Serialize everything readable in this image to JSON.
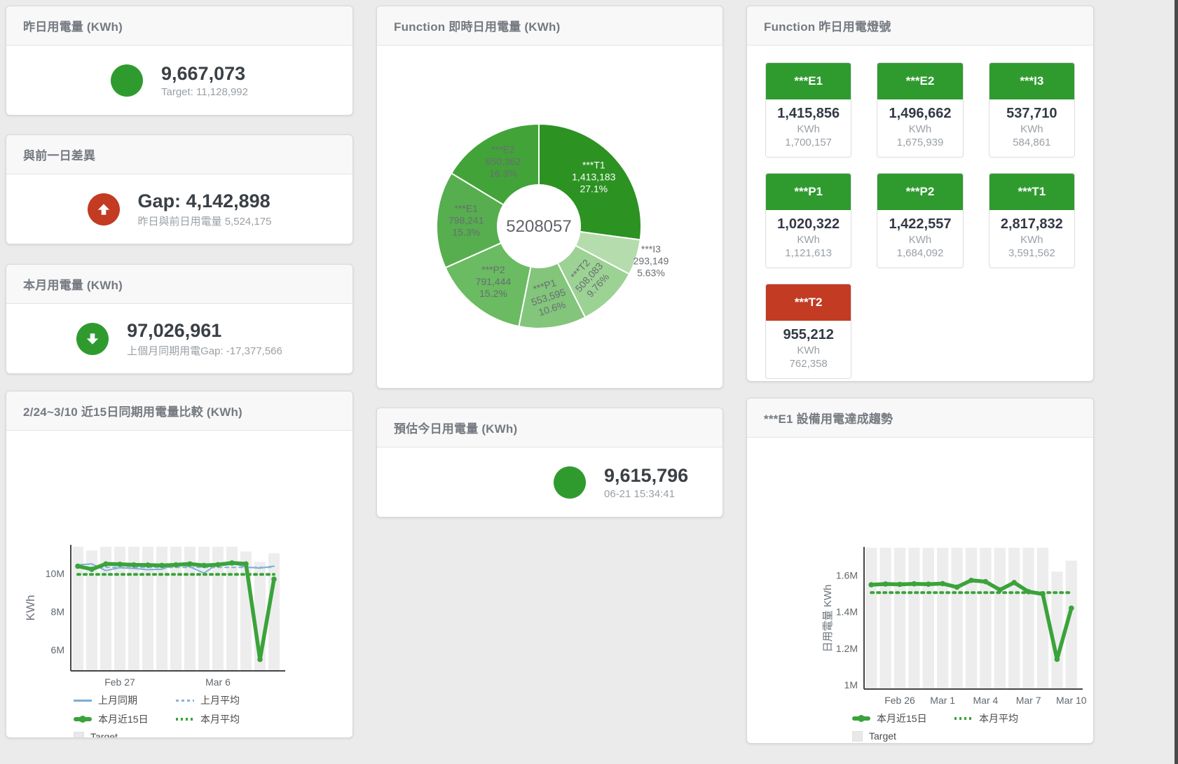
{
  "window": {
    "background": "#ebebeb"
  },
  "colors": {
    "green": "#2f9b2f",
    "red": "#c23b22",
    "blue_line": "#7badd4",
    "blue_dash": "#84b4da",
    "green_line": "#3aa33a",
    "bar_gray": "#ededed",
    "header_bg": "#f8f8f8"
  },
  "cards": {
    "yesterday": {
      "title": "昨日用電量 (KWh)",
      "value": "9,667,073",
      "subtitle": "Target: 11,128,992",
      "indicator": "circle",
      "indicator_color": "#2f9b2f"
    },
    "gap": {
      "title": "與前一日差異",
      "value": "Gap: 4,142,898",
      "subtitle": "昨日與前日用電量 5,524,175",
      "indicator": "arrow-up",
      "indicator_color": "#c23b22"
    },
    "month": {
      "title": "本月用電量 (KWh)",
      "value": "97,026,961",
      "subtitle": "上個月同期用電Gap: -17,377,566",
      "indicator": "arrow-down",
      "indicator_color": "#2f9b2f"
    },
    "estimate": {
      "title": "預估今日用電量 (KWh)",
      "value": "9,615,796",
      "subtitle": "06-21 15:34:41",
      "indicator": "circle",
      "indicator_color": "#2f9b2f"
    },
    "realtime": {
      "title": "Function 即時日用電量 (KWh)"
    },
    "lights": {
      "title": "Function 昨日用電燈號",
      "unit": "KWh",
      "tiles": [
        {
          "name": "***E1",
          "value": "1,415,856",
          "target": "1,700,157",
          "status": "green"
        },
        {
          "name": "***E2",
          "value": "1,496,662",
          "target": "1,675,939",
          "status": "green"
        },
        {
          "name": "***I3",
          "value": "537,710",
          "target": "584,861",
          "status": "green"
        },
        {
          "name": "***P1",
          "value": "1,020,322",
          "target": "1,121,613",
          "status": "green"
        },
        {
          "name": "***P2",
          "value": "1,422,557",
          "target": "1,684,092",
          "status": "green"
        },
        {
          "name": "***T1",
          "value": "2,817,832",
          "target": "3,591,562",
          "status": "green"
        },
        {
          "name": "***T2",
          "value": "955,212",
          "target": "762,358",
          "status": "red"
        }
      ]
    },
    "compare": {
      "title": "2/24~3/10 近15日同期用電量比較 (KWh)"
    },
    "trend": {
      "title": "***E1 設備用電達成趨勢"
    }
  },
  "chart_data": [
    {
      "id": "realtime-donut",
      "type": "pie",
      "title": "Function 即時日用電量 (KWh)",
      "center_total": "5208057",
      "unit": "KWh",
      "slices": [
        {
          "name": "***T1",
          "value": 1413183,
          "pct": "27.1%",
          "color": "#2c9222",
          "label_light": true
        },
        {
          "name": "***I3",
          "value": 293149,
          "pct": "5.63%",
          "color": "#b5dcad",
          "label_outside": true
        },
        {
          "name": "***T2",
          "value": 508083,
          "pct": "9.76%",
          "color": "#9cd294",
          "label_rotate": -48
        },
        {
          "name": "***P1",
          "value": 553595,
          "pct": "10.6%",
          "color": "#83c57b",
          "label_rotate": -18
        },
        {
          "name": "***P2",
          "value": 791444,
          "pct": "15.2%",
          "color": "#6abb62"
        },
        {
          "name": "***E1",
          "value": 798241,
          "pct": "15.3%",
          "color": "#56ae4e"
        },
        {
          "name": "***E2",
          "value": 850362,
          "pct": "16.3%",
          "color": "#42a339"
        }
      ]
    },
    {
      "id": "compare",
      "type": "line",
      "title": "2/24~3/10 近15日同期用電量比較 (KWh)",
      "ylabel": "KWh",
      "unit_scale": "millions KWh",
      "n_points": 15,
      "ylim": [
        4.9,
        11.5
      ],
      "y_ticks": [
        {
          "v": 6,
          "label": "6M"
        },
        {
          "v": 8,
          "label": "8M"
        },
        {
          "v": 10,
          "label": "10M"
        }
      ],
      "x_ticks": [
        {
          "i": 3,
          "label": "Feb 27"
        },
        {
          "i": 10,
          "label": "Mar 6"
        }
      ],
      "grid": false,
      "legend_position": "bottom",
      "series": [
        {
          "name": "Target",
          "type": "bar",
          "color": "#ededed",
          "values": [
            11.4,
            11.2,
            11.4,
            11.4,
            11.4,
            11.4,
            11.4,
            11.4,
            11.4,
            11.4,
            11.4,
            11.4,
            11.15,
            10.6,
            11.05
          ]
        },
        {
          "name": "上月同期",
          "type": "line",
          "color": "#7badd4",
          "width": 2,
          "values": [
            10.45,
            10.5,
            10.15,
            10.3,
            10.26,
            10.2,
            10.22,
            10.5,
            10.35,
            10.02,
            10.5,
            10.55,
            10.33,
            10.28,
            10.38
          ]
        },
        {
          "name": "上月平均",
          "type": "line",
          "color": "#84b4da",
          "width": 2,
          "dash": "5 5",
          "constant": 10.32
        },
        {
          "name": "本月近15日",
          "type": "line",
          "color": "#3aa33a",
          "width": 5.5,
          "marker": true,
          "values": [
            10.38,
            10.22,
            10.5,
            10.48,
            10.45,
            10.44,
            10.42,
            10.45,
            10.5,
            10.42,
            10.46,
            10.55,
            10.5,
            5.5,
            9.7
          ]
        },
        {
          "name": "本月平均",
          "type": "line",
          "color": "#3aa33a",
          "width": 4,
          "dash": "3 6",
          "constant": 9.95
        }
      ],
      "legend": [
        "上月同期",
        "上月平均",
        "本月近15日",
        "本月平均",
        "Target"
      ]
    },
    {
      "id": "trend",
      "type": "line",
      "title": "***E1 設備用電達成趨勢",
      "ylabel": "日用電量 KWh",
      "unit_scale": "millions KWh",
      "n_points": 15,
      "ylim": [
        0.977,
        1.755
      ],
      "y_ticks": [
        {
          "v": 1,
          "label": "1M"
        },
        {
          "v": 1.2,
          "label": "1.2M"
        },
        {
          "v": 1.4,
          "label": "1.4M"
        },
        {
          "v": 1.6,
          "label": "1.6M"
        }
      ],
      "x_ticks": [
        {
          "i": 2,
          "label": "Feb 26"
        },
        {
          "i": 5,
          "label": "Mar 1"
        },
        {
          "i": 8,
          "label": "Mar 4"
        },
        {
          "i": 11,
          "label": "Mar 7"
        },
        {
          "i": 14,
          "label": "Mar 10"
        }
      ],
      "grid": false,
      "legend_position": "bottom",
      "series": [
        {
          "name": "Target",
          "type": "bar",
          "color": "#ededed",
          "values": [
            1.75,
            1.75,
            1.75,
            1.75,
            1.75,
            1.75,
            1.75,
            1.75,
            1.75,
            1.75,
            1.75,
            1.75,
            1.75,
            1.62,
            1.68
          ]
        },
        {
          "name": "本月近15日",
          "type": "line",
          "color": "#3aa33a",
          "width": 5.5,
          "marker": true,
          "values": [
            1.548,
            1.552,
            1.55,
            1.553,
            1.551,
            1.554,
            1.535,
            1.572,
            1.565,
            1.52,
            1.56,
            1.51,
            1.497,
            1.14,
            1.42
          ]
        },
        {
          "name": "本月平均",
          "type": "line",
          "color": "#3aa33a",
          "width": 4,
          "dash": "3 6",
          "constant": 1.505
        }
      ],
      "legend": [
        "本月近15日",
        "本月平均",
        "Target"
      ]
    }
  ]
}
